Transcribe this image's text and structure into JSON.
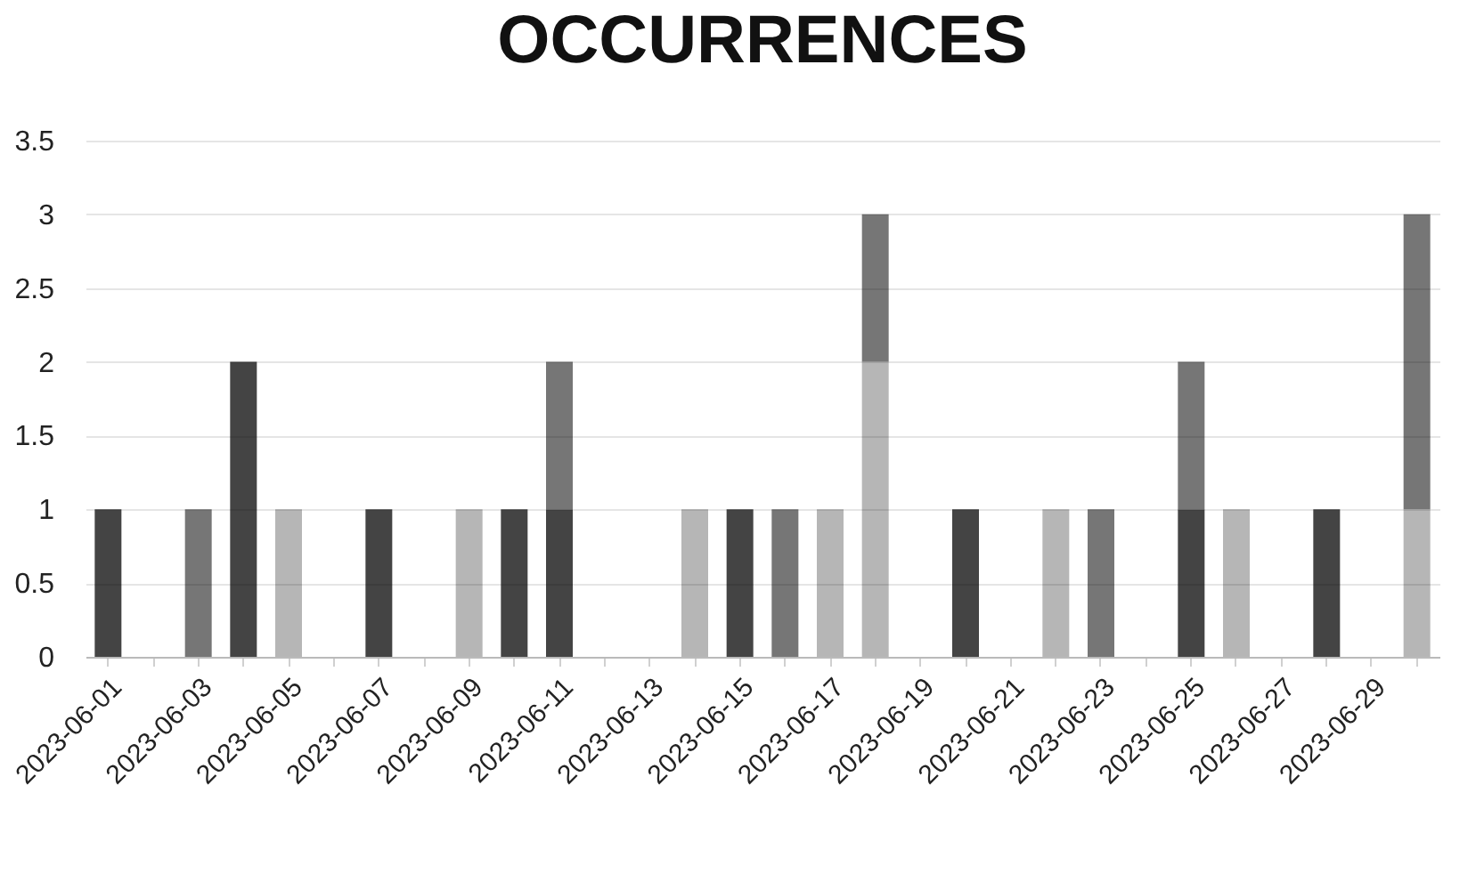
{
  "chart_data": {
    "type": "bar",
    "title": "OCCURRENCES",
    "stacked": true,
    "categories": [
      "2023-06-01",
      null,
      "2023-06-03",
      null,
      "2023-06-05",
      null,
      "2023-06-07",
      null,
      "2023-06-09",
      null,
      "2023-06-11",
      null,
      "2023-06-13",
      null,
      "2023-06-15",
      null,
      "2023-06-17",
      null,
      "2023-06-19",
      null,
      "2023-06-21",
      null,
      "2023-06-23",
      null,
      "2023-06-25",
      null,
      "2023-06-27",
      null,
      "2023-06-29",
      null
    ],
    "series": [
      {
        "color": "#444444",
        "values": [
          1,
          null,
          null,
          2,
          null,
          null,
          1,
          null,
          null,
          1,
          1,
          null,
          null,
          null,
          1,
          null,
          null,
          null,
          null,
          1,
          null,
          null,
          null,
          null,
          1,
          null,
          null,
          1,
          null,
          null
        ]
      },
      {
        "color": "#b6b6b6",
        "values": [
          null,
          null,
          null,
          null,
          1,
          null,
          null,
          null,
          1,
          null,
          null,
          null,
          null,
          1,
          null,
          null,
          1,
          2,
          null,
          null,
          null,
          1,
          null,
          null,
          null,
          1,
          null,
          null,
          null,
          1
        ]
      },
      {
        "color": "#767676",
        "values": [
          null,
          null,
          1,
          null,
          null,
          null,
          null,
          null,
          null,
          null,
          1,
          null,
          null,
          null,
          null,
          1,
          null,
          1,
          null,
          null,
          null,
          null,
          1,
          null,
          1,
          null,
          null,
          null,
          null,
          2
        ]
      }
    ],
    "ylim": [
      0,
      3.5
    ],
    "yticks": [
      0,
      0.5,
      1,
      1.5,
      2,
      2.5,
      3,
      3.5
    ],
    "grid": "y",
    "legend": false
  }
}
